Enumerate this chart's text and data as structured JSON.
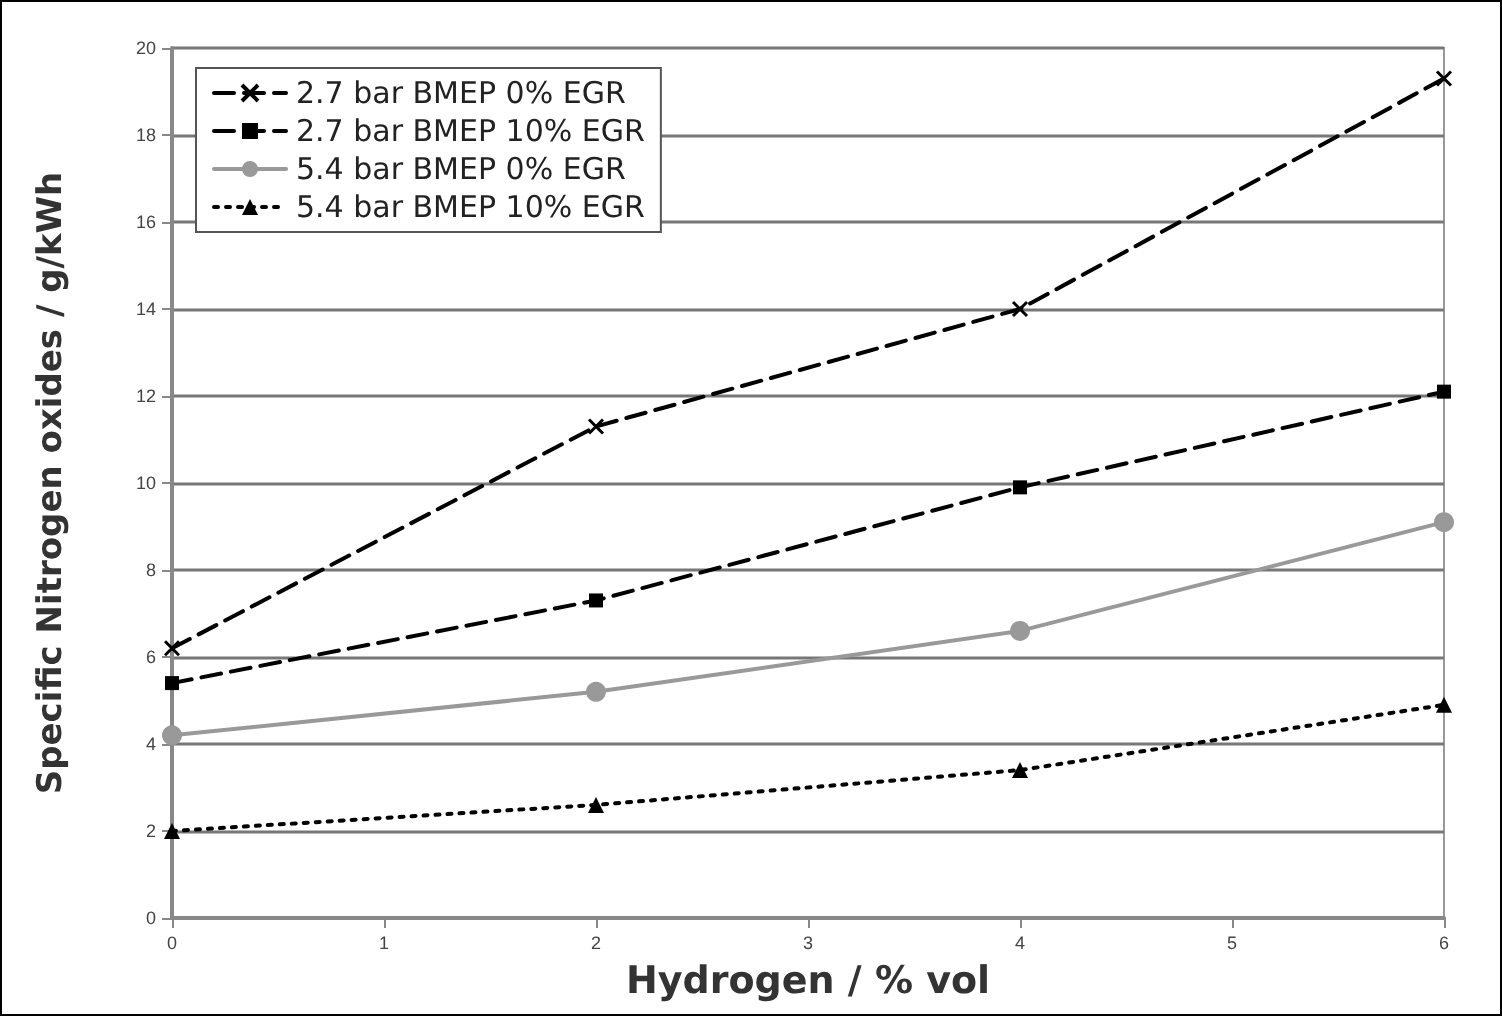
{
  "chart_data": {
    "type": "line",
    "xlabel": "Hydrogen / % vol",
    "ylabel": "Specific Nitrogen oxides / g/kWh",
    "x": [
      0,
      2,
      4,
      6
    ],
    "series": [
      {
        "name": "2.7 bar BMEP 0% EGR",
        "color": "#000000",
        "marker": "cross",
        "line_style": "dashed",
        "values": [
          6.2,
          11.3,
          14.0,
          19.3
        ]
      },
      {
        "name": "2.7 bar BMEP 10% EGR",
        "color": "#000000",
        "marker": "square",
        "line_style": "dashed",
        "values": [
          5.4,
          7.3,
          9.9,
          12.1
        ]
      },
      {
        "name": "5.4 bar BMEP 0% EGR",
        "color": "#999999",
        "marker": "circle",
        "line_style": "solid",
        "values": [
          4.2,
          5.2,
          6.6,
          9.1
        ]
      },
      {
        "name": "5.4 bar BMEP 10% EGR",
        "color": "#000000",
        "marker": "triangle",
        "line_style": "dotted",
        "values": [
          2.0,
          2.6,
          3.4,
          4.9
        ]
      }
    ],
    "xlim": [
      0,
      6
    ],
    "xticks": [
      0,
      1,
      2,
      3,
      4,
      5,
      6
    ],
    "ylim": [
      0,
      20
    ],
    "yticks": [
      0,
      2,
      4,
      6,
      8,
      10,
      12,
      14,
      16,
      18,
      20
    ],
    "grid": "y",
    "legend": "top left"
  }
}
